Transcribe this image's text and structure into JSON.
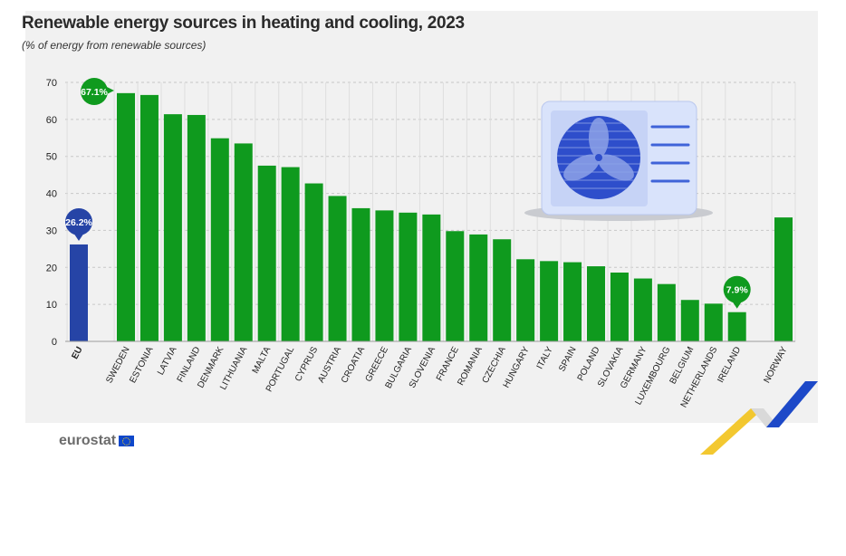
{
  "chart_data": {
    "type": "bar",
    "title": "Renewable energy sources in heating and cooling, 2023",
    "subtitle": "(% of energy from renewable sources)",
    "ylim": [
      0,
      70
    ],
    "yticks": [
      "0",
      "10",
      "20",
      "30",
      "40",
      "50",
      "60",
      "70"
    ],
    "grid": true,
    "categories": [
      "EU",
      "SWEDEN",
      "ESTONIA",
      "LATVIA",
      "FINLAND",
      "DENMARK",
      "LITHUANIA",
      "MALTA",
      "PORTUGAL",
      "CYPRUS",
      "AUSTRIA",
      "CROATIA",
      "GREECE",
      "BULGARIA",
      "SLOVENIA",
      "FRANCE",
      "ROMANIA",
      "CZECHIA",
      "HUNGARY",
      "ITALY",
      "SPAIN",
      "POLAND",
      "SLOVAKIA",
      "GERMANY",
      "LUXEMBOURG",
      "BELGIUM",
      "NETHERLANDS",
      "IRELAND",
      "NORWAY"
    ],
    "values": [
      26.2,
      67.1,
      66.6,
      61.4,
      61.2,
      54.9,
      53.5,
      47.5,
      47.1,
      42.7,
      39.3,
      36.0,
      35.4,
      34.8,
      34.3,
      29.8,
      28.9,
      27.6,
      22.2,
      21.7,
      21.4,
      20.3,
      18.6,
      17.0,
      15.5,
      11.2,
      10.2,
      7.9,
      33.5
    ],
    "callouts": [
      {
        "category": "EU",
        "label": "26.2%"
      },
      {
        "category": "SWEDEN",
        "label": "67.1%"
      },
      {
        "category": "IRELAND",
        "label": "7.9%"
      }
    ],
    "colors": {
      "eu": "#2644a6",
      "country": "#0f9a1e",
      "grid": "#c8c8c8",
      "axis_text": "#222222",
      "panel": "#f1f1f1"
    }
  },
  "branding": {
    "logo_text": "eurostat",
    "flag_icon": "eu-flag-icon",
    "illustration_icon": "heat-pump-icon",
    "corner_icon": "chevron-ribbon-icon"
  }
}
